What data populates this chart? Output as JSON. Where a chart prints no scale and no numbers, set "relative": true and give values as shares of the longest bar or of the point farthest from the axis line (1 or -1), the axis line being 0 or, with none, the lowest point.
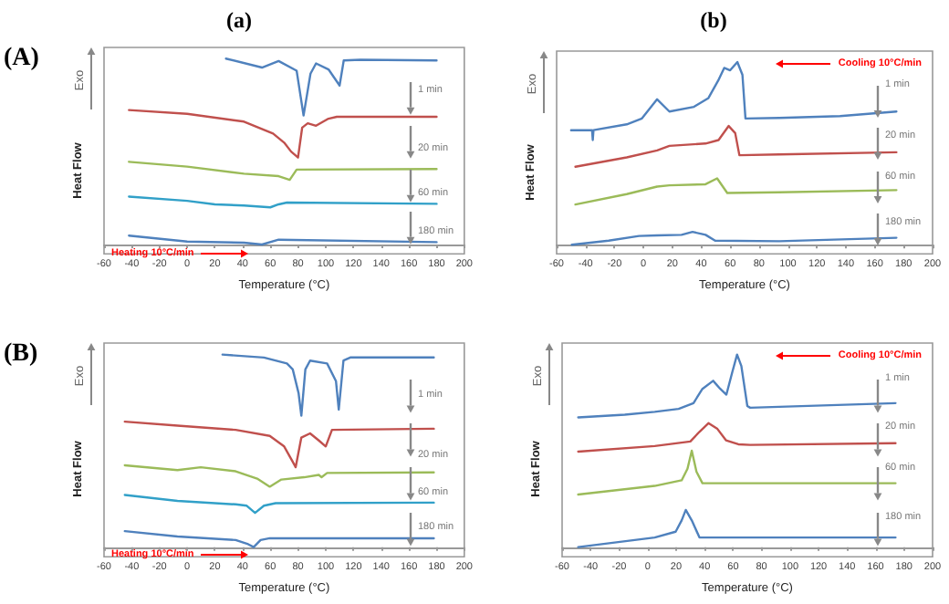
{
  "chart_data": [
    {
      "type": "line",
      "relative": true,
      "title": "(a)",
      "xlabel": "Temperature (°C)",
      "ylabel": "Heat Flow",
      "xlim": [
        -60,
        200
      ],
      "xticks": [
        -60,
        -40,
        -20,
        0,
        20,
        40,
        60,
        80,
        100,
        120,
        140,
        160,
        180,
        200
      ],
      "annotations": [
        "Exo",
        "Heating 10°C/min",
        "1 min",
        "20 min",
        "60 min",
        "180 min",
        "(A)"
      ],
      "series": [
        {
          "color": "#4f81bd",
          "x": [
            28,
            54,
            66,
            79,
            84,
            89,
            93,
            102,
            110,
            113,
            125,
            180
          ],
          "values": [
            1.0,
            0.952,
            0.987,
            0.935,
            0.694,
            0.919,
            0.974,
            0.942,
            0.855,
            0.99,
            0.994,
            0.99
          ]
        },
        {
          "color": "#c0504d",
          "x": [
            -42,
            0,
            41,
            62,
            70,
            75,
            80,
            83,
            87,
            93,
            102,
            108,
            180
          ],
          "values": [
            0.723,
            0.703,
            0.661,
            0.597,
            0.548,
            0.5,
            0.468,
            0.629,
            0.652,
            0.639,
            0.677,
            0.687,
            0.687
          ]
        },
        {
          "color": "#9bbb59",
          "x": [
            -42,
            0,
            41,
            66,
            74,
            79,
            180
          ],
          "values": [
            0.445,
            0.419,
            0.381,
            0.368,
            0.348,
            0.403,
            0.406
          ]
        },
        {
          "color": "#31a0c8",
          "x": [
            -42,
            0,
            20,
            41,
            60,
            66,
            72,
            180
          ],
          "values": [
            0.258,
            0.235,
            0.216,
            0.21,
            0.2,
            0.216,
            0.226,
            0.219
          ]
        },
        {
          "color": "#4f81bd",
          "x": [
            -42,
            -21,
            0,
            41,
            54,
            66,
            180
          ],
          "values": [
            0.048,
            0.032,
            0.016,
            0.01,
            0,
            0.026,
            0.013
          ]
        }
      ]
    },
    {
      "type": "line",
      "relative": true,
      "title": "(b)",
      "xlabel": "Temperature (°C)",
      "ylabel": "Heat Flow",
      "xlim": [
        -60,
        200
      ],
      "xticks": [
        -60,
        -40,
        -20,
        0,
        20,
        40,
        60,
        80,
        100,
        120,
        140,
        160,
        180,
        200
      ],
      "annotations": [
        "Exo",
        "Cooling 10°C/min",
        "1 min",
        "20 min",
        "60 min",
        "180 min"
      ],
      "series": [
        {
          "color": "#4f81bd",
          "x": [
            -50,
            -35.5,
            -35,
            -34.5,
            -11.5,
            -1,
            9.5,
            18,
            35,
            45,
            51.7,
            55.9,
            60,
            65,
            68.5,
            70.6,
            94,
            136,
            175
          ],
          "values": [
            0.627,
            0.627,
            0.573,
            0.627,
            0.659,
            0.691,
            0.796,
            0.729,
            0.755,
            0.803,
            0.898,
            0.968,
            0.955,
            1.0,
            0.93,
            0.691,
            0.694,
            0.704,
            0.729
          ]
        },
        {
          "color": "#c0504d",
          "x": [
            -47,
            -11.5,
            9.5,
            18,
            43,
            52,
            59,
            63.5,
            66.4,
            94,
            175
          ],
          "values": [
            0.427,
            0.478,
            0.516,
            0.541,
            0.554,
            0.573,
            0.65,
            0.611,
            0.49,
            0.494,
            0.506
          ]
        },
        {
          "color": "#9bbb59",
          "x": [
            -47,
            -11.5,
            9.5,
            18,
            43,
            51,
            58,
            94,
            175
          ],
          "values": [
            0.22,
            0.277,
            0.318,
            0.325,
            0.331,
            0.363,
            0.283,
            0.287,
            0.299
          ]
        },
        {
          "color": "#4f81bd",
          "x": [
            -49.5,
            -24,
            -3,
            9.5,
            26.4,
            34,
            43,
            49.6,
            94,
            175
          ],
          "values": [
            0,
            0.022,
            0.048,
            0.051,
            0.054,
            0.07,
            0.054,
            0.022,
            0.019,
            0.038
          ]
        }
      ]
    },
    {
      "type": "line",
      "relative": true,
      "xlabel": "Temperature (°C)",
      "ylabel": "Heat Flow",
      "xlim": [
        -60,
        200
      ],
      "xticks": [
        -60,
        -40,
        -20,
        0,
        20,
        40,
        60,
        80,
        100,
        120,
        140,
        160,
        180,
        200
      ],
      "annotations": [
        "Exo",
        "Heating 10°C/min",
        "1 min",
        "20 min",
        "60 min",
        "180 min",
        "(B)"
      ],
      "series": [
        {
          "color": "#4f81bd",
          "x": [
            25.5,
            55.4,
            72,
            76.2,
            80.4,
            82.4,
            85.3,
            88.7,
            101,
            107.4,
            109.4,
            112.8,
            117.7,
            178
          ],
          "values": [
            1.0,
            0.985,
            0.954,
            0.923,
            0.8,
            0.683,
            0.923,
            0.969,
            0.954,
            0.862,
            0.714,
            0.969,
            0.985,
            0.985
          ]
        },
        {
          "color": "#c0504d",
          "x": [
            -45,
            -7,
            35,
            59.6,
            70,
            76,
            78.3,
            82.4,
            88.7,
            95,
            100,
            104.5,
            178
          ],
          "values": [
            0.652,
            0.631,
            0.609,
            0.578,
            0.523,
            0.446,
            0.415,
            0.569,
            0.591,
            0.554,
            0.523,
            0.609,
            0.615
          ]
        },
        {
          "color": "#9bbb59",
          "x": [
            -45,
            -7,
            9.8,
            35,
            51,
            59.6,
            68,
            84.5,
            95,
            97,
            101,
            178
          ],
          "values": [
            0.425,
            0.4,
            0.415,
            0.394,
            0.354,
            0.314,
            0.351,
            0.363,
            0.375,
            0.363,
            0.385,
            0.388
          ]
        },
        {
          "color": "#31a0c8",
          "x": [
            -45,
            -7,
            35,
            43,
            49,
            55.4,
            63.8,
            178
          ],
          "values": [
            0.271,
            0.24,
            0.222,
            0.215,
            0.178,
            0.215,
            0.228,
            0.231
          ]
        },
        {
          "color": "#4f81bd",
          "x": [
            -45,
            -7,
            35,
            44,
            48,
            53,
            59.6,
            178
          ],
          "values": [
            0.083,
            0.055,
            0.037,
            0.015,
            0,
            0.037,
            0.046,
            0.046
          ]
        }
      ]
    },
    {
      "type": "line",
      "relative": true,
      "xlabel": "Temperature (°C)",
      "ylabel": "Heat Flow",
      "xlim": [
        -60,
        200
      ],
      "xticks": [
        -60,
        -40,
        -20,
        0,
        20,
        40,
        60,
        80,
        100,
        120,
        140,
        160,
        180,
        200
      ],
      "annotations": [
        "Exo",
        "Cooling 10°C/min",
        "1 min",
        "20 min",
        "60 min",
        "180 min"
      ],
      "series": [
        {
          "color": "#4f81bd",
          "x": [
            -48.7,
            -16,
            5,
            21.8,
            32.2,
            38.5,
            46,
            51,
            55.3,
            59.5,
            62.8,
            65.8,
            70,
            72,
            174
          ],
          "values": [
            0.674,
            0.688,
            0.703,
            0.718,
            0.748,
            0.822,
            0.864,
            0.822,
            0.792,
            0.911,
            1.0,
            0.941,
            0.733,
            0.724,
            0.748
          ]
        },
        {
          "color": "#c0504d",
          "x": [
            -48.7,
            5,
            30,
            36.4,
            42.7,
            49,
            55,
            63.7,
            72,
            174
          ],
          "values": [
            0.496,
            0.525,
            0.549,
            0.599,
            0.644,
            0.614,
            0.555,
            0.534,
            0.531,
            0.54
          ]
        },
        {
          "color": "#9bbb59",
          "x": [
            -48.7,
            5,
            23.9,
            28,
            31,
            34.3,
            38.5,
            174
          ],
          "values": [
            0.273,
            0.318,
            0.347,
            0.407,
            0.501,
            0.392,
            0.332,
            0.332
          ]
        },
        {
          "color": "#4f81bd",
          "x": [
            -48.7,
            5,
            19.7,
            23.9,
            26.8,
            31,
            36.4,
            174
          ],
          "values": [
            0,
            0.05,
            0.08,
            0.139,
            0.193,
            0.139,
            0.05,
            0.05
          ]
        }
      ]
    }
  ]
}
